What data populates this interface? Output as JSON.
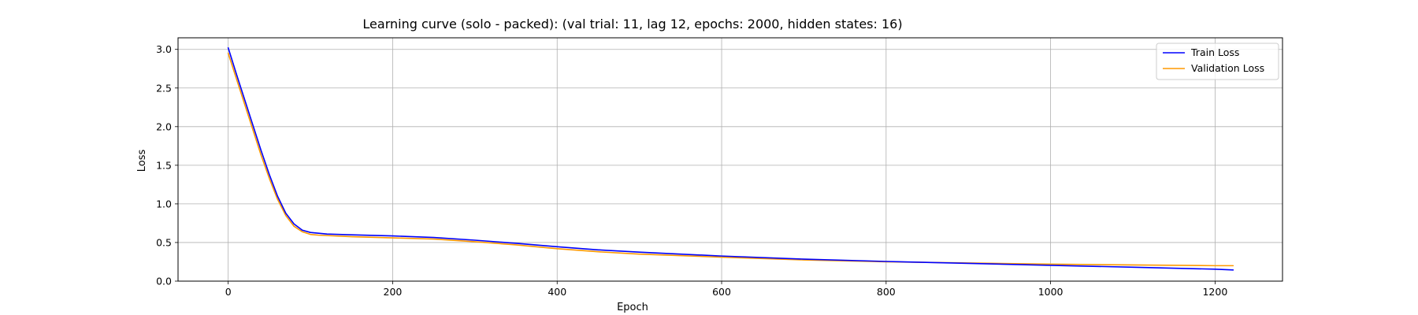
{
  "chart_data": {
    "type": "line",
    "title": "Learning curve (solo - packed): (val trial: 11, lag 12, epochs: 2000, hidden states: 16)",
    "xlabel": "Epoch",
    "ylabel": "Loss",
    "xlim": [
      -61,
      1282
    ],
    "ylim": [
      0.0,
      3.15
    ],
    "xticks": [
      0,
      200,
      400,
      600,
      800,
      1000,
      1200
    ],
    "xtick_labels": [
      "0",
      "200",
      "400",
      "600",
      "800",
      "1000",
      "1200"
    ],
    "yticks": [
      0.0,
      0.5,
      1.0,
      1.5,
      2.0,
      2.5,
      3.0
    ],
    "ytick_labels": [
      "0.0",
      "0.5",
      "1.0",
      "1.5",
      "2.0",
      "2.5",
      "3.0"
    ],
    "grid": true,
    "legend_position": "top-right",
    "series": [
      {
        "name": "Train Loss",
        "color": "#0000ff",
        "x": [
          0,
          10,
          20,
          30,
          40,
          50,
          60,
          70,
          80,
          90,
          100,
          110,
          120,
          150,
          200,
          250,
          300,
          350,
          400,
          450,
          500,
          600,
          700,
          800,
          900,
          1000,
          1100,
          1200,
          1222
        ],
        "y": [
          3.02,
          2.68,
          2.35,
          2.02,
          1.69,
          1.38,
          1.1,
          0.88,
          0.74,
          0.66,
          0.63,
          0.62,
          0.61,
          0.6,
          0.585,
          0.565,
          0.53,
          0.49,
          0.445,
          0.405,
          0.375,
          0.325,
          0.285,
          0.255,
          0.23,
          0.205,
          0.18,
          0.155,
          0.145
        ]
      },
      {
        "name": "Validation Loss",
        "color": "#ff9900",
        "x": [
          0,
          10,
          20,
          30,
          40,
          50,
          60,
          70,
          80,
          90,
          100,
          110,
          120,
          150,
          200,
          250,
          300,
          350,
          400,
          450,
          500,
          600,
          700,
          800,
          900,
          1000,
          1100,
          1200,
          1222
        ],
        "y": [
          2.95,
          2.62,
          2.29,
          1.96,
          1.63,
          1.33,
          1.06,
          0.85,
          0.71,
          0.64,
          0.605,
          0.595,
          0.59,
          0.575,
          0.56,
          0.545,
          0.51,
          0.47,
          0.42,
          0.38,
          0.35,
          0.31,
          0.275,
          0.25,
          0.235,
          0.22,
          0.21,
          0.2,
          0.2
        ]
      }
    ]
  }
}
